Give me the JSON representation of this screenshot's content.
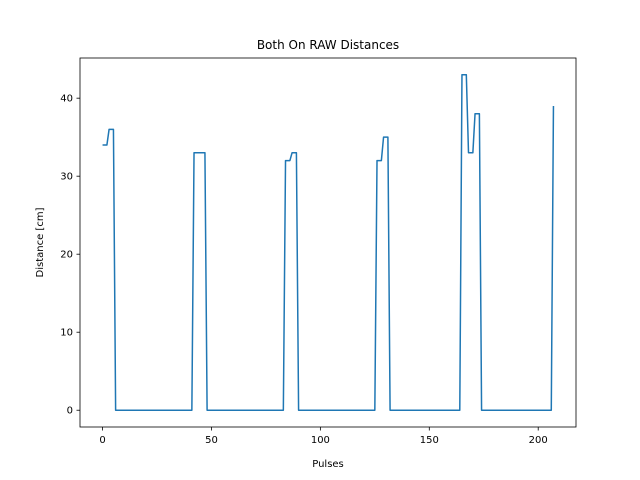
{
  "chart_data": {
    "type": "line",
    "title": "Both On RAW Distances",
    "xlabel": "Pulses",
    "ylabel": "Distance [cm]",
    "xlim": [
      -10.35,
      217.35
    ],
    "ylim": [
      -2.15,
      45.15
    ],
    "xticks": [
      0,
      50,
      100,
      150,
      200
    ],
    "yticks": [
      0,
      10,
      20,
      30,
      40
    ],
    "grid": false,
    "line_color": "#1f77b4",
    "series": [
      {
        "x": [
          0,
          1,
          2,
          3,
          4,
          5,
          6,
          40,
          41,
          42,
          43,
          44,
          45,
          46,
          47,
          48,
          82,
          83,
          84,
          85,
          86,
          87,
          88,
          89,
          90,
          124,
          125,
          126,
          127,
          128,
          129,
          130,
          131,
          132,
          163,
          164,
          165,
          166,
          167,
          168,
          169,
          170,
          171,
          172,
          173,
          174,
          205,
          206,
          207
        ],
        "y": [
          34,
          34,
          34,
          36,
          36,
          36,
          0,
          0,
          0,
          33,
          33,
          33,
          33,
          33,
          33,
          0,
          0,
          0,
          32,
          32,
          32,
          33,
          33,
          33,
          0,
          0,
          0,
          32,
          32,
          32,
          35,
          35,
          35,
          0,
          0,
          0,
          43,
          43,
          43,
          33,
          33,
          33,
          38,
          38,
          38,
          0,
          0,
          0,
          39
        ]
      }
    ]
  }
}
